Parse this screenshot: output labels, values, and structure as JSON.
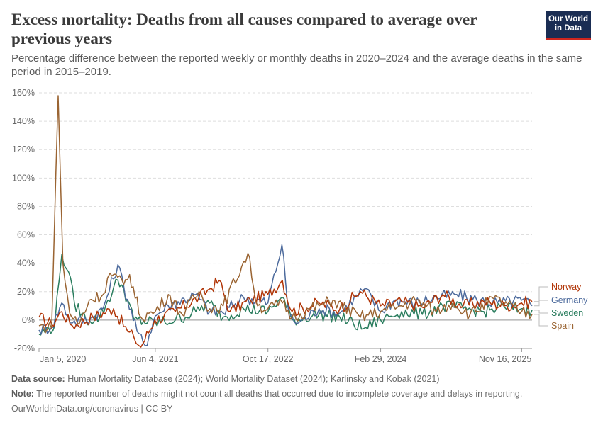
{
  "header": {
    "title": "Excess mortality: Deaths from all causes compared to average over previous years",
    "subtitle": "Percentage difference between the reported weekly or monthly deaths in 2020–2024 and the average deaths in the same period in 2015–2019.",
    "logo_line1": "Our World",
    "logo_line2": "in Data"
  },
  "footer": {
    "source_label": "Data source:",
    "source_text": " Human Mortality Database (2024); World Mortality Dataset (2024); Karlinsky and Kobak (2021)",
    "note_label": "Note:",
    "note_text": " The reported number of deaths might not count all deaths that occurred due to incomplete coverage and delays in reporting.",
    "credit": "OurWorldinData.org/coronavirus | CC BY"
  },
  "chart_data": {
    "type": "line",
    "x_axis": {
      "type": "date",
      "ticks": [
        "Jan 5, 2020",
        "Jun 4, 2021",
        "Oct 17, 2022",
        "Feb 29, 2024",
        "Nov 16, 2025"
      ]
    },
    "y_axis": {
      "ticks": [
        "-20%",
        "0%",
        "20%",
        "40%",
        "60%",
        "80%",
        "100%",
        "120%",
        "140%",
        "160%"
      ],
      "range": [
        -20,
        160
      ],
      "unit": "%"
    },
    "grid": "horizontal dashed",
    "legend_position": "right, labels at line ends",
    "series": [
      {
        "name": "Norway",
        "color": "#b13507",
        "points": [
          [
            "2020-01-05",
            2
          ],
          [
            "2020-03-01",
            -3
          ],
          [
            "2020-04-15",
            6
          ],
          [
            "2020-06-01",
            -4
          ],
          [
            "2020-09-01",
            2
          ],
          [
            "2020-12-01",
            8
          ],
          [
            "2021-02-01",
            -8
          ],
          [
            "2021-03-01",
            -12
          ],
          [
            "2021-04-01",
            -19
          ],
          [
            "2021-06-01",
            0
          ],
          [
            "2021-09-01",
            6
          ],
          [
            "2021-12-15",
            16
          ],
          [
            "2022-02-01",
            22
          ],
          [
            "2022-03-15",
            28
          ],
          [
            "2022-05-01",
            6
          ],
          [
            "2022-08-01",
            14
          ],
          [
            "2022-10-17",
            18
          ],
          [
            "2022-12-20",
            28
          ],
          [
            "2023-02-01",
            6
          ],
          [
            "2023-06-01",
            12
          ],
          [
            "2023-09-01",
            8
          ],
          [
            "2023-12-01",
            20
          ],
          [
            "2024-02-29",
            10
          ],
          [
            "2024-06-01",
            13
          ],
          [
            "2024-09-01",
            9
          ],
          [
            "2024-12-01",
            18
          ],
          [
            "2025-03-01",
            10
          ],
          [
            "2025-06-01",
            13
          ],
          [
            "2025-09-01",
            10
          ],
          [
            "2025-11-16",
            12
          ],
          [
            "2026-01-01",
            13
          ]
        ]
      },
      {
        "name": "Germany",
        "color": "#4c6a9c",
        "points": [
          [
            "2020-01-05",
            -7
          ],
          [
            "2020-03-01",
            -5
          ],
          [
            "2020-04-15",
            12
          ],
          [
            "2020-06-01",
            -2
          ],
          [
            "2020-09-01",
            2
          ],
          [
            "2020-10-15",
            8
          ],
          [
            "2020-12-20",
            39
          ],
          [
            "2021-01-15",
            24
          ],
          [
            "2021-03-15",
            -8
          ],
          [
            "2021-04-20",
            -18
          ],
          [
            "2021-06-04",
            3
          ],
          [
            "2021-08-01",
            10
          ],
          [
            "2021-12-01",
            18
          ],
          [
            "2022-02-01",
            6
          ],
          [
            "2022-04-01",
            5
          ],
          [
            "2022-07-01",
            16
          ],
          [
            "2022-10-17",
            12
          ],
          [
            "2022-12-18",
            53
          ],
          [
            "2023-01-20",
            2
          ],
          [
            "2023-03-01",
            -2
          ],
          [
            "2023-06-01",
            8
          ],
          [
            "2023-09-01",
            5
          ],
          [
            "2023-12-20",
            22
          ],
          [
            "2024-02-29",
            6
          ],
          [
            "2024-05-01",
            14
          ],
          [
            "2024-08-01",
            12
          ],
          [
            "2024-11-01",
            16
          ],
          [
            "2025-02-01",
            18
          ],
          [
            "2025-05-01",
            14
          ],
          [
            "2025-08-01",
            12
          ],
          [
            "2025-11-16",
            14
          ],
          [
            "2026-01-01",
            10
          ]
        ]
      },
      {
        "name": "Sweden",
        "color": "#2a7d5e",
        "points": [
          [
            "2020-01-05",
            -10
          ],
          [
            "2020-03-15",
            -4
          ],
          [
            "2020-04-15",
            46
          ],
          [
            "2020-05-15",
            34
          ],
          [
            "2020-06-10",
            12
          ],
          [
            "2020-08-01",
            0
          ],
          [
            "2020-10-01",
            2
          ],
          [
            "2020-12-20",
            28
          ],
          [
            "2021-01-15",
            22
          ],
          [
            "2021-03-01",
            0
          ],
          [
            "2021-06-04",
            -2
          ],
          [
            "2021-09-01",
            0
          ],
          [
            "2021-12-01",
            6
          ],
          [
            "2022-02-01",
            12
          ],
          [
            "2022-04-01",
            2
          ],
          [
            "2022-07-01",
            8
          ],
          [
            "2022-10-17",
            6
          ],
          [
            "2022-12-20",
            16
          ],
          [
            "2023-02-01",
            0
          ],
          [
            "2023-06-01",
            4
          ],
          [
            "2023-09-01",
            2
          ],
          [
            "2023-12-15",
            -6
          ],
          [
            "2024-02-29",
            0
          ],
          [
            "2024-06-01",
            6
          ],
          [
            "2024-09-01",
            4
          ],
          [
            "2024-12-01",
            10
          ],
          [
            "2025-03-01",
            8
          ],
          [
            "2025-06-01",
            6
          ],
          [
            "2025-09-01",
            9
          ],
          [
            "2025-11-16",
            8
          ],
          [
            "2026-01-01",
            7
          ]
        ]
      },
      {
        "name": "Spain",
        "color": "#9a6432",
        "points": [
          [
            "2020-01-05",
            -4
          ],
          [
            "2020-03-01",
            -6
          ],
          [
            "2020-03-30",
            158
          ],
          [
            "2020-04-20",
            40
          ],
          [
            "2020-05-20",
            5
          ],
          [
            "2020-07-01",
            -3
          ],
          [
            "2020-08-15",
            14
          ],
          [
            "2020-10-15",
            18
          ],
          [
            "2020-11-15",
            33
          ],
          [
            "2021-01-15",
            25
          ],
          [
            "2021-02-10",
            32
          ],
          [
            "2021-04-01",
            2
          ],
          [
            "2021-06-04",
            6
          ],
          [
            "2021-08-01",
            18
          ],
          [
            "2021-10-01",
            4
          ],
          [
            "2021-12-15",
            20
          ],
          [
            "2022-02-01",
            8
          ],
          [
            "2022-04-01",
            10
          ],
          [
            "2022-07-20",
            47
          ],
          [
            "2022-09-01",
            10
          ],
          [
            "2022-10-17",
            8
          ],
          [
            "2022-12-20",
            12
          ],
          [
            "2023-02-01",
            2
          ],
          [
            "2023-06-01",
            10
          ],
          [
            "2023-08-01",
            14
          ],
          [
            "2023-12-01",
            2
          ],
          [
            "2024-02-29",
            6
          ],
          [
            "2024-06-01",
            10
          ],
          [
            "2024-08-01",
            14
          ],
          [
            "2024-11-01",
            6
          ],
          [
            "2025-01-15",
            12
          ],
          [
            "2025-04-01",
            4
          ],
          [
            "2025-07-15",
            15
          ],
          [
            "2025-11-16",
            6
          ],
          [
            "2026-01-01",
            4
          ]
        ]
      }
    ]
  }
}
